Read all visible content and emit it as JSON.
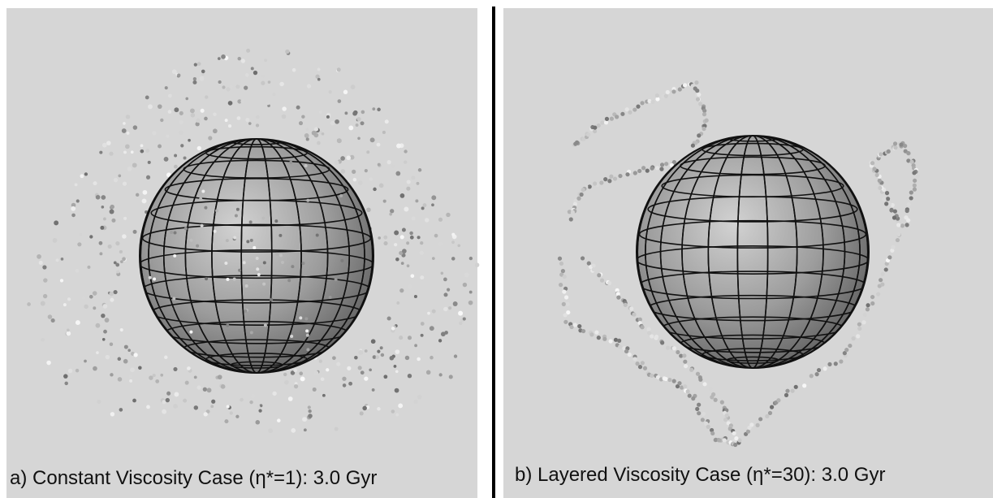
{
  "panels": [
    {
      "caption": "a) Constant Viscosity Case (η*=1): 3.0 Gyr"
    },
    {
      "caption": "b) Layered Viscosity Case (η*=30): 3.0 Gyr"
    }
  ]
}
